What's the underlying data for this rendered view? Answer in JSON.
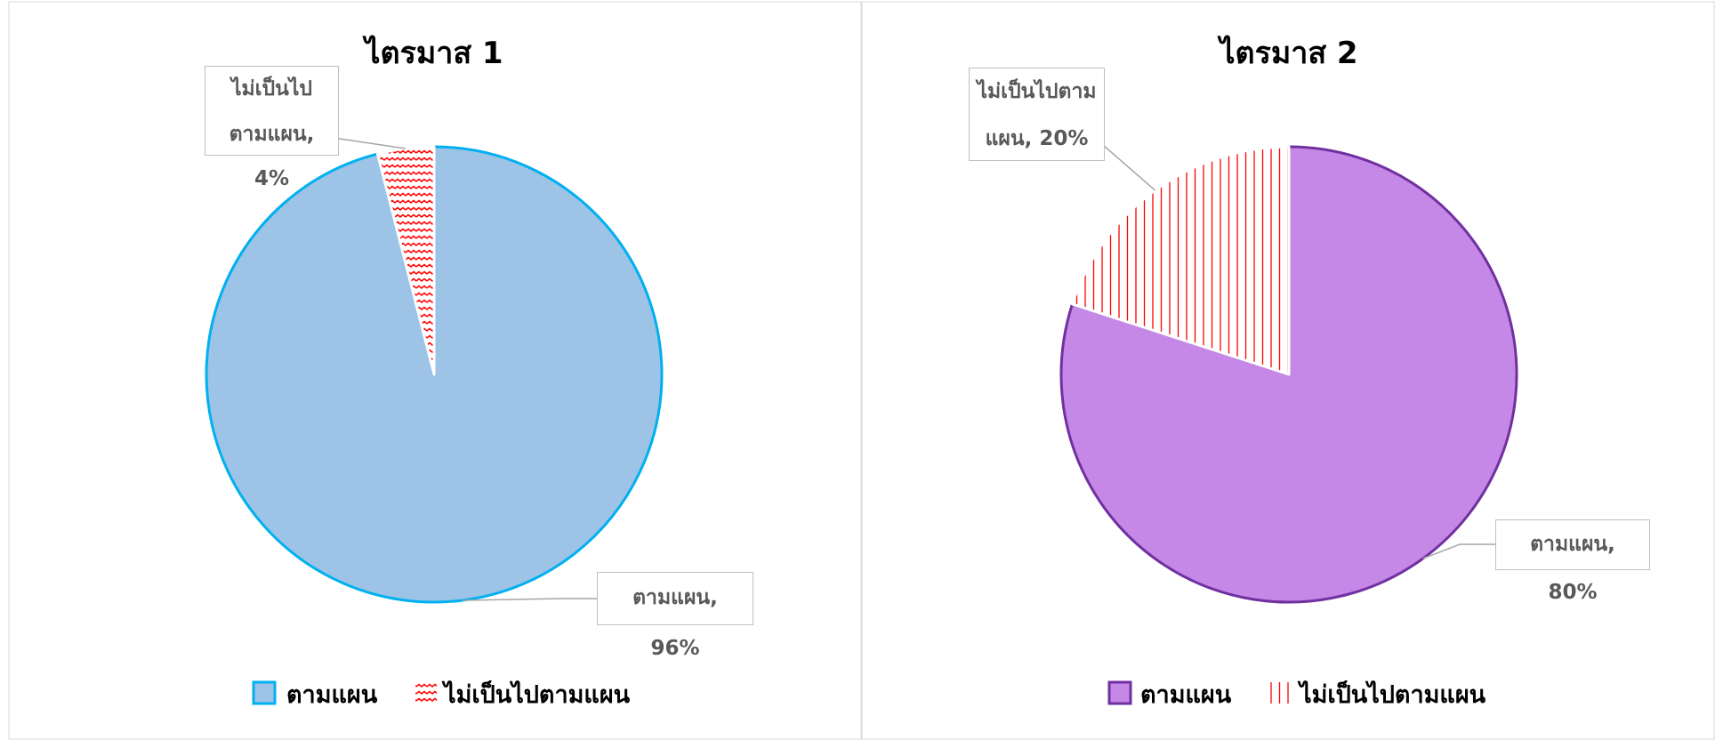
{
  "chart_data": [
    {
      "type": "pie",
      "title": "ไตรมาส 1",
      "categories": [
        "ตามแผน",
        "ไม่เป็นไปตามแผน"
      ],
      "values": [
        96,
        4
      ],
      "value_labels": [
        "ตามแผน, 96%",
        "ไม่เป็นไปตามแผน, 4%"
      ],
      "colors": [
        "#9dc3e6",
        "#ff0000"
      ],
      "edge_colors": [
        "#00b0f0",
        "#ffffff"
      ],
      "patterns": [
        "solid",
        "wave"
      ],
      "legend": "bottom"
    },
    {
      "type": "pie",
      "title": "ไตรมาส 2",
      "categories": [
        "ตามแผน",
        "ไม่เป็นไปตามแผน"
      ],
      "values": [
        80,
        20
      ],
      "value_labels": [
        "ตามแผน, 80%",
        "ไม่เป็นไปตามแผน, 20%"
      ],
      "colors": [
        "#c588e6",
        "#ff0000"
      ],
      "edge_colors": [
        "#7030a0",
        "#ffffff"
      ],
      "patterns": [
        "solid",
        "vertical"
      ],
      "legend": "bottom"
    }
  ]
}
